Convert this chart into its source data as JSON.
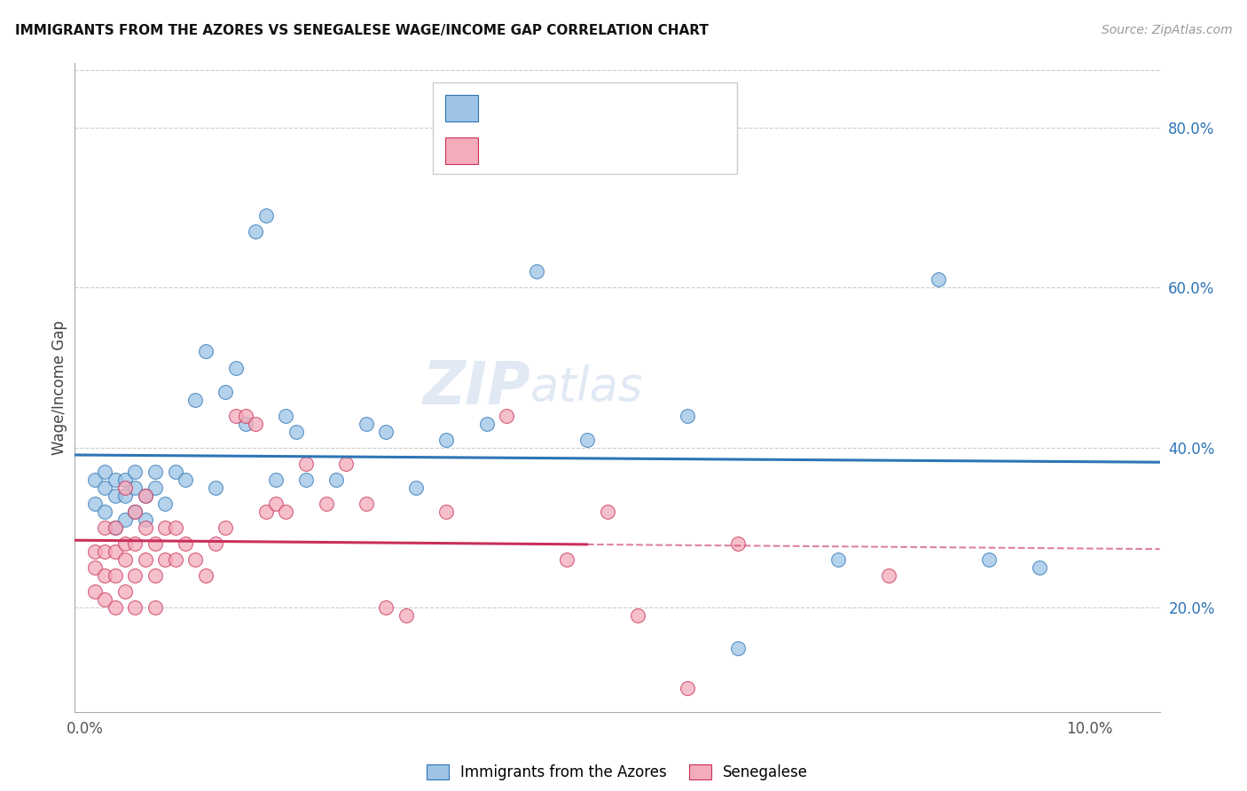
{
  "title": "IMMIGRANTS FROM THE AZORES VS SENEGALESE WAGE/INCOME GAP CORRELATION CHART",
  "source": "Source: ZipAtlas.com",
  "ylabel": "Wage/Income Gap",
  "ylim": [
    0.07,
    0.88
  ],
  "xlim": [
    -0.001,
    0.107
  ],
  "yticks": [
    0.2,
    0.4,
    0.6,
    0.8
  ],
  "ytick_labels": [
    "20.0%",
    "40.0%",
    "60.0%",
    "80.0%"
  ],
  "xticks": [
    0.0,
    0.02,
    0.04,
    0.06,
    0.08,
    0.1
  ],
  "xtick_labels": [
    "0.0%",
    "",
    "",
    "",
    "",
    "10.0%"
  ],
  "color_blue": "#9DC3E6",
  "color_pink": "#F4ABBA",
  "line_blue": "#2E75B6",
  "line_pink": "#C9305A",
  "watermark_zip": "ZIP",
  "watermark_atlas": "atlas",
  "background": "#FFFFFF",
  "azores_x": [
    0.001,
    0.001,
    0.002,
    0.002,
    0.002,
    0.003,
    0.003,
    0.003,
    0.004,
    0.004,
    0.004,
    0.005,
    0.005,
    0.005,
    0.006,
    0.006,
    0.007,
    0.007,
    0.008,
    0.009,
    0.01,
    0.011,
    0.012,
    0.013,
    0.014,
    0.015,
    0.016,
    0.017,
    0.018,
    0.019,
    0.02,
    0.021,
    0.022,
    0.025,
    0.028,
    0.03,
    0.033,
    0.036,
    0.04,
    0.045,
    0.05,
    0.06,
    0.065,
    0.075,
    0.085,
    0.09,
    0.095
  ],
  "azores_y": [
    0.36,
    0.33,
    0.37,
    0.35,
    0.32,
    0.36,
    0.34,
    0.3,
    0.36,
    0.34,
    0.31,
    0.37,
    0.35,
    0.32,
    0.34,
    0.31,
    0.37,
    0.35,
    0.33,
    0.37,
    0.36,
    0.46,
    0.52,
    0.35,
    0.47,
    0.5,
    0.43,
    0.67,
    0.69,
    0.36,
    0.44,
    0.42,
    0.36,
    0.36,
    0.43,
    0.42,
    0.35,
    0.41,
    0.43,
    0.62,
    0.41,
    0.44,
    0.15,
    0.26,
    0.61,
    0.26,
    0.25
  ],
  "senegal_x": [
    0.001,
    0.001,
    0.001,
    0.002,
    0.002,
    0.002,
    0.002,
    0.003,
    0.003,
    0.003,
    0.003,
    0.004,
    0.004,
    0.004,
    0.004,
    0.005,
    0.005,
    0.005,
    0.005,
    0.006,
    0.006,
    0.006,
    0.007,
    0.007,
    0.007,
    0.008,
    0.008,
    0.009,
    0.009,
    0.01,
    0.011,
    0.012,
    0.013,
    0.014,
    0.015,
    0.016,
    0.017,
    0.018,
    0.019,
    0.02,
    0.022,
    0.024,
    0.026,
    0.028,
    0.03,
    0.032,
    0.036,
    0.042,
    0.048,
    0.052,
    0.055,
    0.06,
    0.065,
    0.08
  ],
  "senegal_y": [
    0.27,
    0.25,
    0.22,
    0.3,
    0.27,
    0.24,
    0.21,
    0.3,
    0.27,
    0.24,
    0.2,
    0.28,
    0.35,
    0.26,
    0.22,
    0.32,
    0.28,
    0.24,
    0.2,
    0.34,
    0.3,
    0.26,
    0.28,
    0.24,
    0.2,
    0.3,
    0.26,
    0.3,
    0.26,
    0.28,
    0.26,
    0.24,
    0.28,
    0.3,
    0.44,
    0.44,
    0.43,
    0.32,
    0.33,
    0.32,
    0.38,
    0.33,
    0.38,
    0.33,
    0.2,
    0.19,
    0.32,
    0.44,
    0.26,
    0.32,
    0.19,
    0.1,
    0.28,
    0.24
  ],
  "az_reg_intercept": 0.355,
  "az_reg_slope": 0.45,
  "sn_reg_intercept": 0.238,
  "sn_reg_slope": 1.7
}
